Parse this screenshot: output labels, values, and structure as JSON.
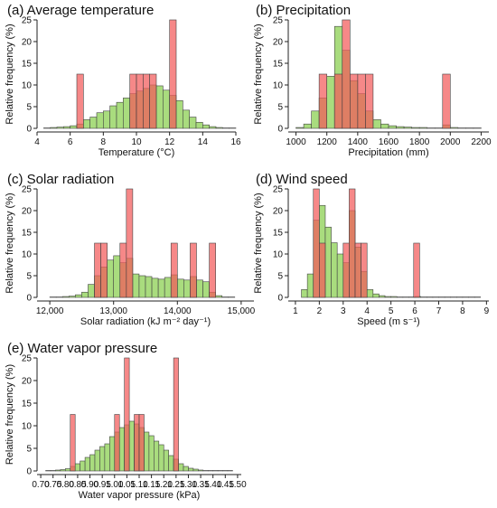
{
  "colors": {
    "green": "#a9dc7e",
    "red": "#f25a5a",
    "overlap": "#f77a2f",
    "stroke": "#444444",
    "axis": "#222222"
  },
  "chart_data": [
    {
      "id": "a",
      "type": "bar",
      "title": "(a) Average temperature",
      "xlabel": "Temperature (°C)",
      "ylabel": "Relative frequency (%)",
      "xlim": [
        4,
        16
      ],
      "ylim": [
        0,
        25
      ],
      "xticks": [
        4,
        6,
        8,
        10,
        12,
        14,
        16
      ],
      "xtick_labels": [
        "4",
        "6",
        "8",
        "10",
        "12",
        "14",
        "16"
      ],
      "yticks": [
        0,
        5,
        10,
        15,
        20,
        25
      ],
      "bin_width": 0.4,
      "series": [
        {
          "values": [
            [
              4.4,
              0.1
            ],
            [
              4.8,
              0.2
            ],
            [
              5.2,
              0.3
            ],
            [
              5.6,
              0.4
            ],
            [
              6.0,
              0.6
            ],
            [
              6.4,
              1.0
            ],
            [
              6.8,
              2.0
            ],
            [
              7.2,
              2.6
            ],
            [
              7.6,
              3.6
            ],
            [
              8.0,
              4.0
            ],
            [
              8.4,
              5.2
            ],
            [
              8.8,
              6.0
            ],
            [
              9.2,
              7.0
            ],
            [
              9.6,
              8.0
            ],
            [
              10.0,
              8.6
            ],
            [
              10.4,
              9.2
            ],
            [
              10.8,
              10.0
            ],
            [
              11.2,
              9.8
            ],
            [
              11.6,
              8.8
            ],
            [
              12.0,
              7.6
            ],
            [
              12.4,
              6.4
            ],
            [
              12.8,
              4.2
            ],
            [
              13.2,
              2.6
            ],
            [
              13.6,
              1.4
            ],
            [
              14.0,
              0.8
            ],
            [
              14.4,
              0.4
            ],
            [
              14.8,
              0.2
            ],
            [
              15.2,
              0.1
            ],
            [
              15.6,
              0.1
            ]
          ]
        },
        {
          "values": [
            [
              6.4,
              12.5
            ],
            [
              9.6,
              12.5
            ],
            [
              10.0,
              12.5
            ],
            [
              10.4,
              12.5
            ],
            [
              10.8,
              12.5
            ],
            [
              12.0,
              25
            ]
          ]
        }
      ]
    },
    {
      "id": "b",
      "type": "bar",
      "title": "(b) Precipitation",
      "xlabel": "Precipitation (mm)",
      "ylabel": "Relative frequency (%)",
      "xlim": [
        950,
        2250
      ],
      "ylim": [
        0,
        25
      ],
      "xticks": [
        1000,
        1200,
        1400,
        1600,
        1800,
        2000,
        2200
      ],
      "xtick_labels": [
        "1000",
        "1200",
        "1400",
        "1600",
        "1800",
        "2000",
        "2200"
      ],
      "yticks": [
        0,
        5,
        10,
        15,
        20,
        25
      ],
      "bin_width": 50,
      "series": [
        {
          "values": [
            [
              1000,
              0.2
            ],
            [
              1050,
              1.0
            ],
            [
              1100,
              4.0
            ],
            [
              1150,
              7.0
            ],
            [
              1200,
              12.0
            ],
            [
              1250,
              23.5
            ],
            [
              1300,
              18.0
            ],
            [
              1350,
              11.0
            ],
            [
              1400,
              8.0
            ],
            [
              1450,
              4.0
            ],
            [
              1500,
              2.0
            ],
            [
              1550,
              1.0
            ],
            [
              1600,
              0.6
            ],
            [
              1650,
              0.4
            ],
            [
              1700,
              0.3
            ],
            [
              1750,
              0.2
            ],
            [
              1800,
              0.2
            ],
            [
              1850,
              0.1
            ],
            [
              1900,
              0.1
            ],
            [
              1950,
              0.8
            ],
            [
              2000,
              0.2
            ],
            [
              2050,
              0.1
            ],
            [
              2100,
              0.1
            ],
            [
              2150,
              0.1
            ]
          ]
        },
        {
          "values": [
            [
              1150,
              12.5
            ],
            [
              1250,
              12.5
            ],
            [
              1300,
              25
            ],
            [
              1350,
              12.5
            ],
            [
              1400,
              12.5
            ],
            [
              1450,
              12.5
            ],
            [
              1950,
              12.5
            ]
          ]
        }
      ]
    },
    {
      "id": "c",
      "type": "bar",
      "title": "(c) Solar radiation",
      "xlabel": "Solar radiation (kJ m⁻² day⁻¹)",
      "ylabel": "Relative frequency (%)",
      "xlim": [
        11800,
        15200
      ],
      "ylim": [
        0,
        25
      ],
      "xticks": [
        12000,
        13000,
        14000,
        15000
      ],
      "xtick_labels": [
        "12,000",
        "13,000",
        "14,000",
        "15,000"
      ],
      "yticks": [
        0,
        5,
        10,
        15,
        20,
        25
      ],
      "bin_width": 100,
      "series": [
        {
          "values": [
            [
              12000,
              0.1
            ],
            [
              12100,
              0.1
            ],
            [
              12200,
              0.2
            ],
            [
              12300,
              0.3
            ],
            [
              12400,
              0.6
            ],
            [
              12500,
              1.2
            ],
            [
              12600,
              3.0
            ],
            [
              12700,
              5.0
            ],
            [
              12800,
              7.0
            ],
            [
              12900,
              8.6
            ],
            [
              13000,
              9.6
            ],
            [
              13100,
              8.0
            ],
            [
              13200,
              9.0
            ],
            [
              13300,
              5.4
            ],
            [
              13400,
              5.0
            ],
            [
              13500,
              4.8
            ],
            [
              13600,
              4.4
            ],
            [
              13700,
              4.2
            ],
            [
              13800,
              4.6
            ],
            [
              13900,
              5.2
            ],
            [
              14000,
              4.2
            ],
            [
              14100,
              4.0
            ],
            [
              14200,
              4.8
            ],
            [
              14300,
              4.0
            ],
            [
              14400,
              3.6
            ],
            [
              14500,
              1.2
            ],
            [
              14600,
              0.4
            ],
            [
              14700,
              0.1
            ],
            [
              14800,
              0.1
            ]
          ]
        },
        {
          "values": [
            [
              12700,
              12.5
            ],
            [
              12800,
              12.5
            ],
            [
              13100,
              12.5
            ],
            [
              13200,
              25
            ],
            [
              13900,
              12.5
            ],
            [
              14200,
              12.5
            ],
            [
              14500,
              12.5
            ]
          ]
        }
      ]
    },
    {
      "id": "d",
      "type": "bar",
      "title": "(d) Wind speed",
      "xlabel": "Speed (m s⁻¹)",
      "ylabel": "Relative frequency (%)",
      "xlim": [
        0.7,
        9.1
      ],
      "ylim": [
        0,
        25
      ],
      "xticks": [
        1,
        2,
        3,
        4,
        5,
        6,
        7,
        8,
        9
      ],
      "xtick_labels": [
        "1",
        "2",
        "3",
        "4",
        "5",
        "6",
        "7",
        "8",
        "9"
      ],
      "yticks": [
        0,
        5,
        10,
        15,
        20,
        25
      ],
      "bin_width": 0.25,
      "series": [
        {
          "values": [
            [
              1.25,
              1.8
            ],
            [
              1.5,
              5.4
            ],
            [
              1.75,
              17.8
            ],
            [
              2.0,
              21.2
            ],
            [
              2.25,
              16.2
            ],
            [
              2.5,
              12.6
            ],
            [
              2.75,
              10.0
            ],
            [
              3.0,
              8.0
            ],
            [
              3.25,
              20.0
            ],
            [
              3.5,
              11.6
            ],
            [
              3.75,
              6.0
            ],
            [
              4.0,
              1.8
            ],
            [
              4.25,
              0.8
            ],
            [
              4.5,
              0.4
            ],
            [
              4.75,
              0.2
            ],
            [
              5.0,
              0.2
            ],
            [
              5.25,
              0.1
            ],
            [
              5.5,
              0.1
            ],
            [
              5.75,
              0.1
            ],
            [
              6.0,
              0.2
            ],
            [
              6.25,
              0.1
            ],
            [
              6.5,
              0.1
            ],
            [
              6.75,
              0.1
            ],
            [
              7.0,
              0.1
            ],
            [
              7.25,
              0.1
            ],
            [
              7.5,
              0.1
            ],
            [
              7.75,
              0.1
            ],
            [
              8.0,
              0.1
            ],
            [
              8.25,
              0.1
            ],
            [
              8.5,
              0.1
            ]
          ]
        },
        {
          "values": [
            [
              1.75,
              25
            ],
            [
              2.0,
              12.5
            ],
            [
              3.0,
              12.5
            ],
            [
              3.25,
              25
            ],
            [
              3.5,
              12.5
            ],
            [
              3.75,
              12.5
            ],
            [
              5.95,
              12.5
            ]
          ]
        }
      ]
    },
    {
      "id": "e",
      "type": "bar",
      "title": "(e) Water vapor pressure",
      "xlabel": "Water vapor pressure (kPa)",
      "ylabel": "Relative frequency (%)",
      "xlim": [
        0.685,
        1.515
      ],
      "ylim": [
        0,
        25
      ],
      "xticks": [
        0.7,
        0.75,
        0.8,
        0.85,
        0.9,
        0.95,
        1.0,
        1.05,
        1.1,
        1.15,
        1.2,
        1.25,
        1.3,
        1.35,
        1.4,
        1.45,
        1.5
      ],
      "xtick_labels": [
        "0.70",
        "0.75",
        "0.80",
        "0.85",
        "0.90",
        "0.95",
        "1.00",
        "1.05",
        "1.10",
        "1.15",
        "1.20",
        "1.25",
        "1.30",
        "1.35",
        "1.40",
        "1.45",
        "1.50"
      ],
      "yticks": [
        0,
        5,
        10,
        15,
        20,
        25
      ],
      "bin_width": 0.02,
      "series": [
        {
          "values": [
            [
              0.72,
              0.1
            ],
            [
              0.74,
              0.1
            ],
            [
              0.76,
              0.2
            ],
            [
              0.78,
              0.3
            ],
            [
              0.8,
              0.5
            ],
            [
              0.82,
              1.0
            ],
            [
              0.84,
              1.6
            ],
            [
              0.86,
              2.2
            ],
            [
              0.88,
              3.0
            ],
            [
              0.9,
              3.6
            ],
            [
              0.92,
              4.6
            ],
            [
              0.94,
              5.4
            ],
            [
              0.96,
              6.0
            ],
            [
              0.98,
              7.6
            ],
            [
              1.0,
              8.6
            ],
            [
              1.02,
              9.6
            ],
            [
              1.04,
              10.2
            ],
            [
              1.06,
              11.0
            ],
            [
              1.08,
              10.4
            ],
            [
              1.1,
              9.6
            ],
            [
              1.12,
              8.6
            ],
            [
              1.14,
              7.8
            ],
            [
              1.16,
              6.6
            ],
            [
              1.18,
              5.8
            ],
            [
              1.2,
              4.6
            ],
            [
              1.22,
              3.4
            ],
            [
              1.24,
              2.6
            ],
            [
              1.26,
              1.6
            ],
            [
              1.28,
              1.0
            ],
            [
              1.3,
              0.6
            ],
            [
              1.32,
              0.4
            ],
            [
              1.34,
              0.2
            ],
            [
              1.36,
              0.1
            ],
            [
              1.38,
              0.1
            ],
            [
              1.4,
              0.1
            ],
            [
              1.42,
              0.1
            ],
            [
              1.44,
              0.1
            ],
            [
              1.46,
              0.1
            ]
          ]
        },
        {
          "values": [
            [
              0.82,
              12.5
            ],
            [
              1.0,
              12.5
            ],
            [
              1.04,
              25
            ],
            [
              1.08,
              12.5
            ],
            [
              1.1,
              12.5
            ],
            [
              1.24,
              25
            ]
          ]
        }
      ]
    }
  ]
}
